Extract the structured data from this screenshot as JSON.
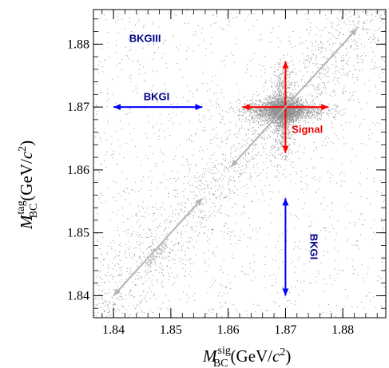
{
  "chart_data": {
    "type": "scatter",
    "title": "",
    "xlabel": {
      "symbol": "M",
      "superscript": "sig",
      "subscript": "BC",
      "unit_open": "(GeV/",
      "unit_c": "c",
      "unit_power": "2",
      "unit_close": ")"
    },
    "ylabel": {
      "symbol": "M",
      "superscript": "tag",
      "subscript": "BC",
      "unit_open": "(GeV/",
      "unit_c": "c",
      "unit_power": "2",
      "unit_close": ")"
    },
    "xlim": [
      1.8365,
      1.8875
    ],
    "ylim": [
      1.8365,
      1.8855
    ],
    "x_ticks": [
      "1.84",
      "1.85",
      "1.86",
      "1.87",
      "1.88"
    ],
    "x_tick_values": [
      1.84,
      1.85,
      1.86,
      1.87,
      1.88
    ],
    "y_ticks": [
      "1.84",
      "1.85",
      "1.86",
      "1.87",
      "1.88"
    ],
    "y_tick_values": [
      1.84,
      1.85,
      1.86,
      1.87,
      1.88
    ],
    "signal_peak": {
      "x": 1.8695,
      "y": 1.8695
    },
    "annotations": [
      {
        "label": "BKGIII",
        "x": 1.8455,
        "y": 1.8808,
        "color": "#00008b",
        "rotate": false
      },
      {
        "label": "BKGI",
        "x": 1.8475,
        "y": 1.8715,
        "color": "#00008b",
        "rotate": false
      },
      {
        "label": "Signal",
        "x": 1.8738,
        "y": 1.8663,
        "color": "#ee0000",
        "rotate": false
      },
      {
        "label": "BKGI",
        "x": 1.8748,
        "y": 1.8478,
        "color": "#00008b",
        "rotate": true
      },
      {
        "label": "BKGII",
        "x": 1.8475,
        "y": 1.8465,
        "color": "#c8c8c8",
        "rotate": true
      }
    ],
    "arrows": [
      {
        "name": "bkgi-horizontal-arrow",
        "x1": 1.84,
        "y1": 1.87,
        "x2": 1.8555,
        "y2": 1.87,
        "color": "#0000ff",
        "double": true
      },
      {
        "name": "bkgi-vertical-arrow",
        "x1": 1.87,
        "y1": 1.8555,
        "x2": 1.87,
        "y2": 1.84,
        "color": "#0000ff",
        "double": true
      },
      {
        "name": "signal-horizontal-arrow",
        "x1": 1.8625,
        "y1": 1.87,
        "x2": 1.8775,
        "y2": 1.87,
        "color": "#ff0000",
        "double": true
      },
      {
        "name": "signal-vertical-arrow",
        "x1": 1.87,
        "y1": 1.8627,
        "x2": 1.87,
        "y2": 1.8773,
        "color": "#ff0000",
        "double": true
      },
      {
        "name": "bkgii-lower-arrow",
        "x1": 1.84,
        "y1": 1.84,
        "x2": 1.8555,
        "y2": 1.8555,
        "color": "#b4b4b4",
        "double": true
      },
      {
        "name": "bkgii-upper-arrow",
        "x1": 1.8605,
        "y1": 1.8605,
        "x2": 1.8825,
        "y2": 1.8825,
        "color": "#b4b4b4",
        "double": true
      }
    ]
  }
}
